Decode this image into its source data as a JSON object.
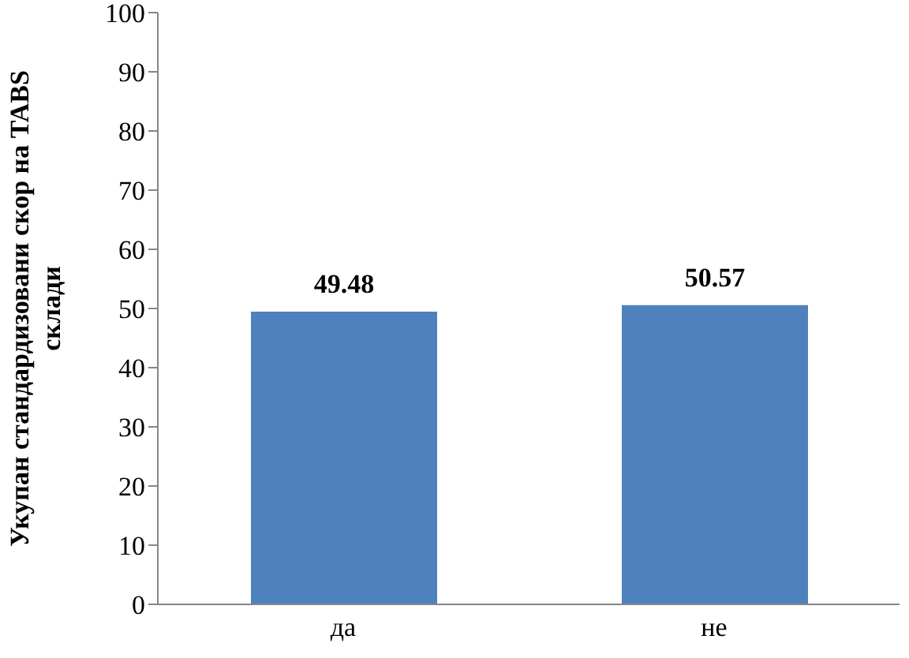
{
  "chart_data": {
    "type": "bar",
    "ylabel": "Укупан стандардизовани скор на TABS склади",
    "categories": [
      "да",
      "не"
    ],
    "values": [
      49.48,
      50.57
    ],
    "color": "#4f81bd",
    "ylim": [
      0,
      100
    ],
    "yticks": [
      0,
      10,
      20,
      30,
      40,
      50,
      60,
      70,
      80,
      90,
      100
    ],
    "grid": false,
    "data_labels": true
  }
}
